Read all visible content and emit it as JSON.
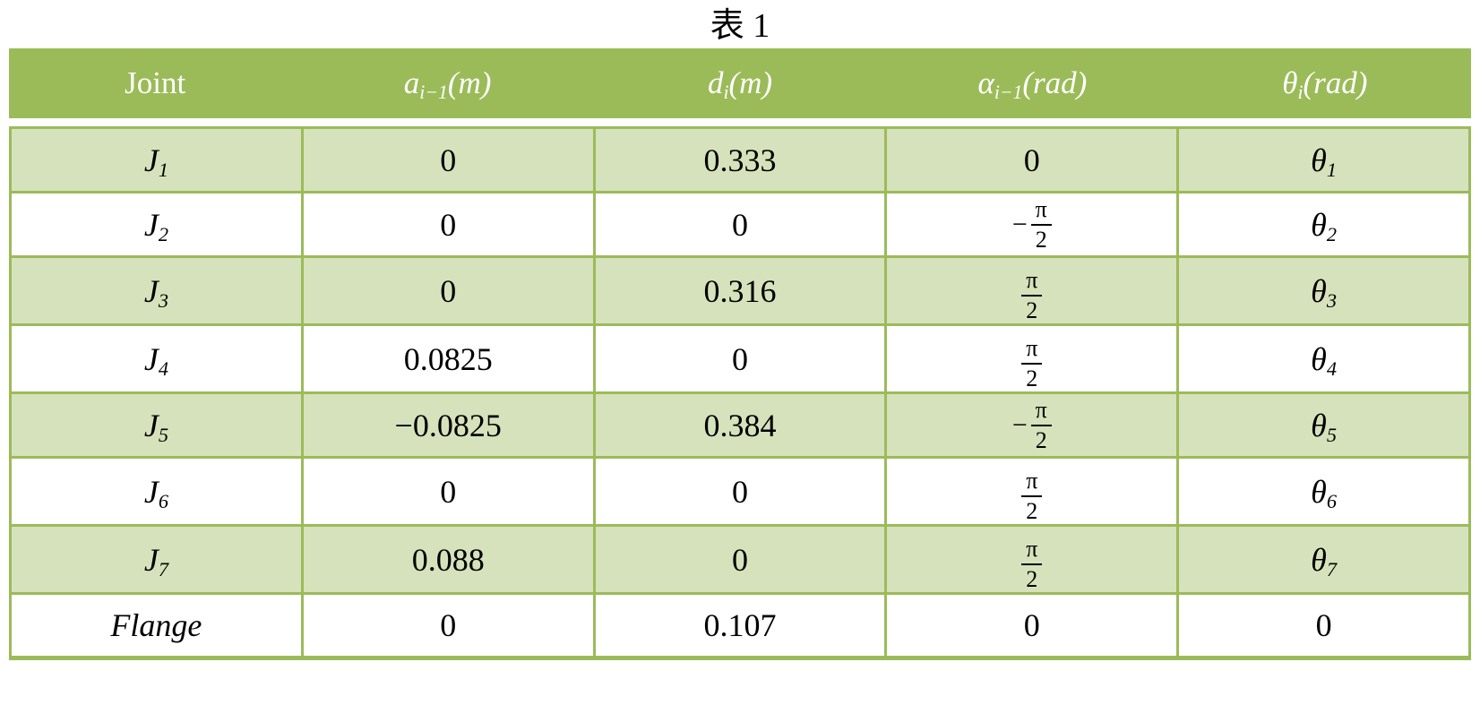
{
  "title": "表 1",
  "colors": {
    "header_bg": "#9bbb59",
    "border": "#9bbb59",
    "row_alt_bg": "#d6e2bb",
    "header_text": "#ffffff",
    "body_text": "#000000"
  },
  "table": {
    "headers": [
      {
        "t": "plain",
        "text": "Joint",
        "italic": false
      },
      {
        "t": "sub",
        "base": "a",
        "sub": "i−1",
        "tail": "(m)",
        "italic": true
      },
      {
        "t": "sub",
        "base": "d",
        "sub": "i",
        "tail": "(m)",
        "italic": true
      },
      {
        "t": "sub",
        "base": "α",
        "sub": "i−1",
        "tail": "(rad)",
        "italic": true
      },
      {
        "t": "sub",
        "base": "θ",
        "sub": "i",
        "tail": "(rad)",
        "italic": true
      }
    ],
    "rows": [
      {
        "cells": [
          {
            "t": "sub",
            "base": "J",
            "sub": "1",
            "italic": true
          },
          {
            "t": "plain",
            "text": "0"
          },
          {
            "t": "plain",
            "text": "0.333"
          },
          {
            "t": "plain",
            "text": "0"
          },
          {
            "t": "sub",
            "base": "θ",
            "sub": "1",
            "italic": true
          }
        ]
      },
      {
        "cells": [
          {
            "t": "sub",
            "base": "J",
            "sub": "2",
            "italic": true
          },
          {
            "t": "plain",
            "text": "0"
          },
          {
            "t": "plain",
            "text": "0"
          },
          {
            "t": "frac",
            "neg": true,
            "num": "π",
            "den": "2"
          },
          {
            "t": "sub",
            "base": "θ",
            "sub": "2",
            "italic": true
          }
        ]
      },
      {
        "cells": [
          {
            "t": "sub",
            "base": "J",
            "sub": "3",
            "italic": true
          },
          {
            "t": "plain",
            "text": "0"
          },
          {
            "t": "plain",
            "text": "0.316"
          },
          {
            "t": "frac",
            "neg": false,
            "num": "π",
            "den": "2"
          },
          {
            "t": "sub",
            "base": "θ",
            "sub": "3",
            "italic": true
          }
        ]
      },
      {
        "cells": [
          {
            "t": "sub",
            "base": "J",
            "sub": "4",
            "italic": true
          },
          {
            "t": "plain",
            "text": "0.0825"
          },
          {
            "t": "plain",
            "text": "0"
          },
          {
            "t": "frac",
            "neg": false,
            "num": "π",
            "den": "2"
          },
          {
            "t": "sub",
            "base": "θ",
            "sub": "4",
            "italic": true
          }
        ]
      },
      {
        "cells": [
          {
            "t": "sub",
            "base": "J",
            "sub": "5",
            "italic": true
          },
          {
            "t": "plain",
            "text": "−0.0825"
          },
          {
            "t": "plain",
            "text": "0.384"
          },
          {
            "t": "frac",
            "neg": true,
            "num": "π",
            "den": "2"
          },
          {
            "t": "sub",
            "base": "θ",
            "sub": "5",
            "italic": true
          }
        ]
      },
      {
        "cells": [
          {
            "t": "sub",
            "base": "J",
            "sub": "6",
            "italic": true
          },
          {
            "t": "plain",
            "text": "0"
          },
          {
            "t": "plain",
            "text": "0"
          },
          {
            "t": "frac",
            "neg": false,
            "num": "π",
            "den": "2"
          },
          {
            "t": "sub",
            "base": "θ",
            "sub": "6",
            "italic": true
          }
        ]
      },
      {
        "cells": [
          {
            "t": "sub",
            "base": "J",
            "sub": "7",
            "italic": true
          },
          {
            "t": "plain",
            "text": "0.088"
          },
          {
            "t": "plain",
            "text": "0"
          },
          {
            "t": "frac",
            "neg": false,
            "num": "π",
            "den": "2"
          },
          {
            "t": "sub",
            "base": "θ",
            "sub": "7",
            "italic": true
          }
        ]
      },
      {
        "cells": [
          {
            "t": "plain",
            "text": "Flange",
            "italic": true
          },
          {
            "t": "plain",
            "text": "0"
          },
          {
            "t": "plain",
            "text": "0.107"
          },
          {
            "t": "plain",
            "text": "0"
          },
          {
            "t": "plain",
            "text": "0"
          }
        ]
      }
    ]
  }
}
